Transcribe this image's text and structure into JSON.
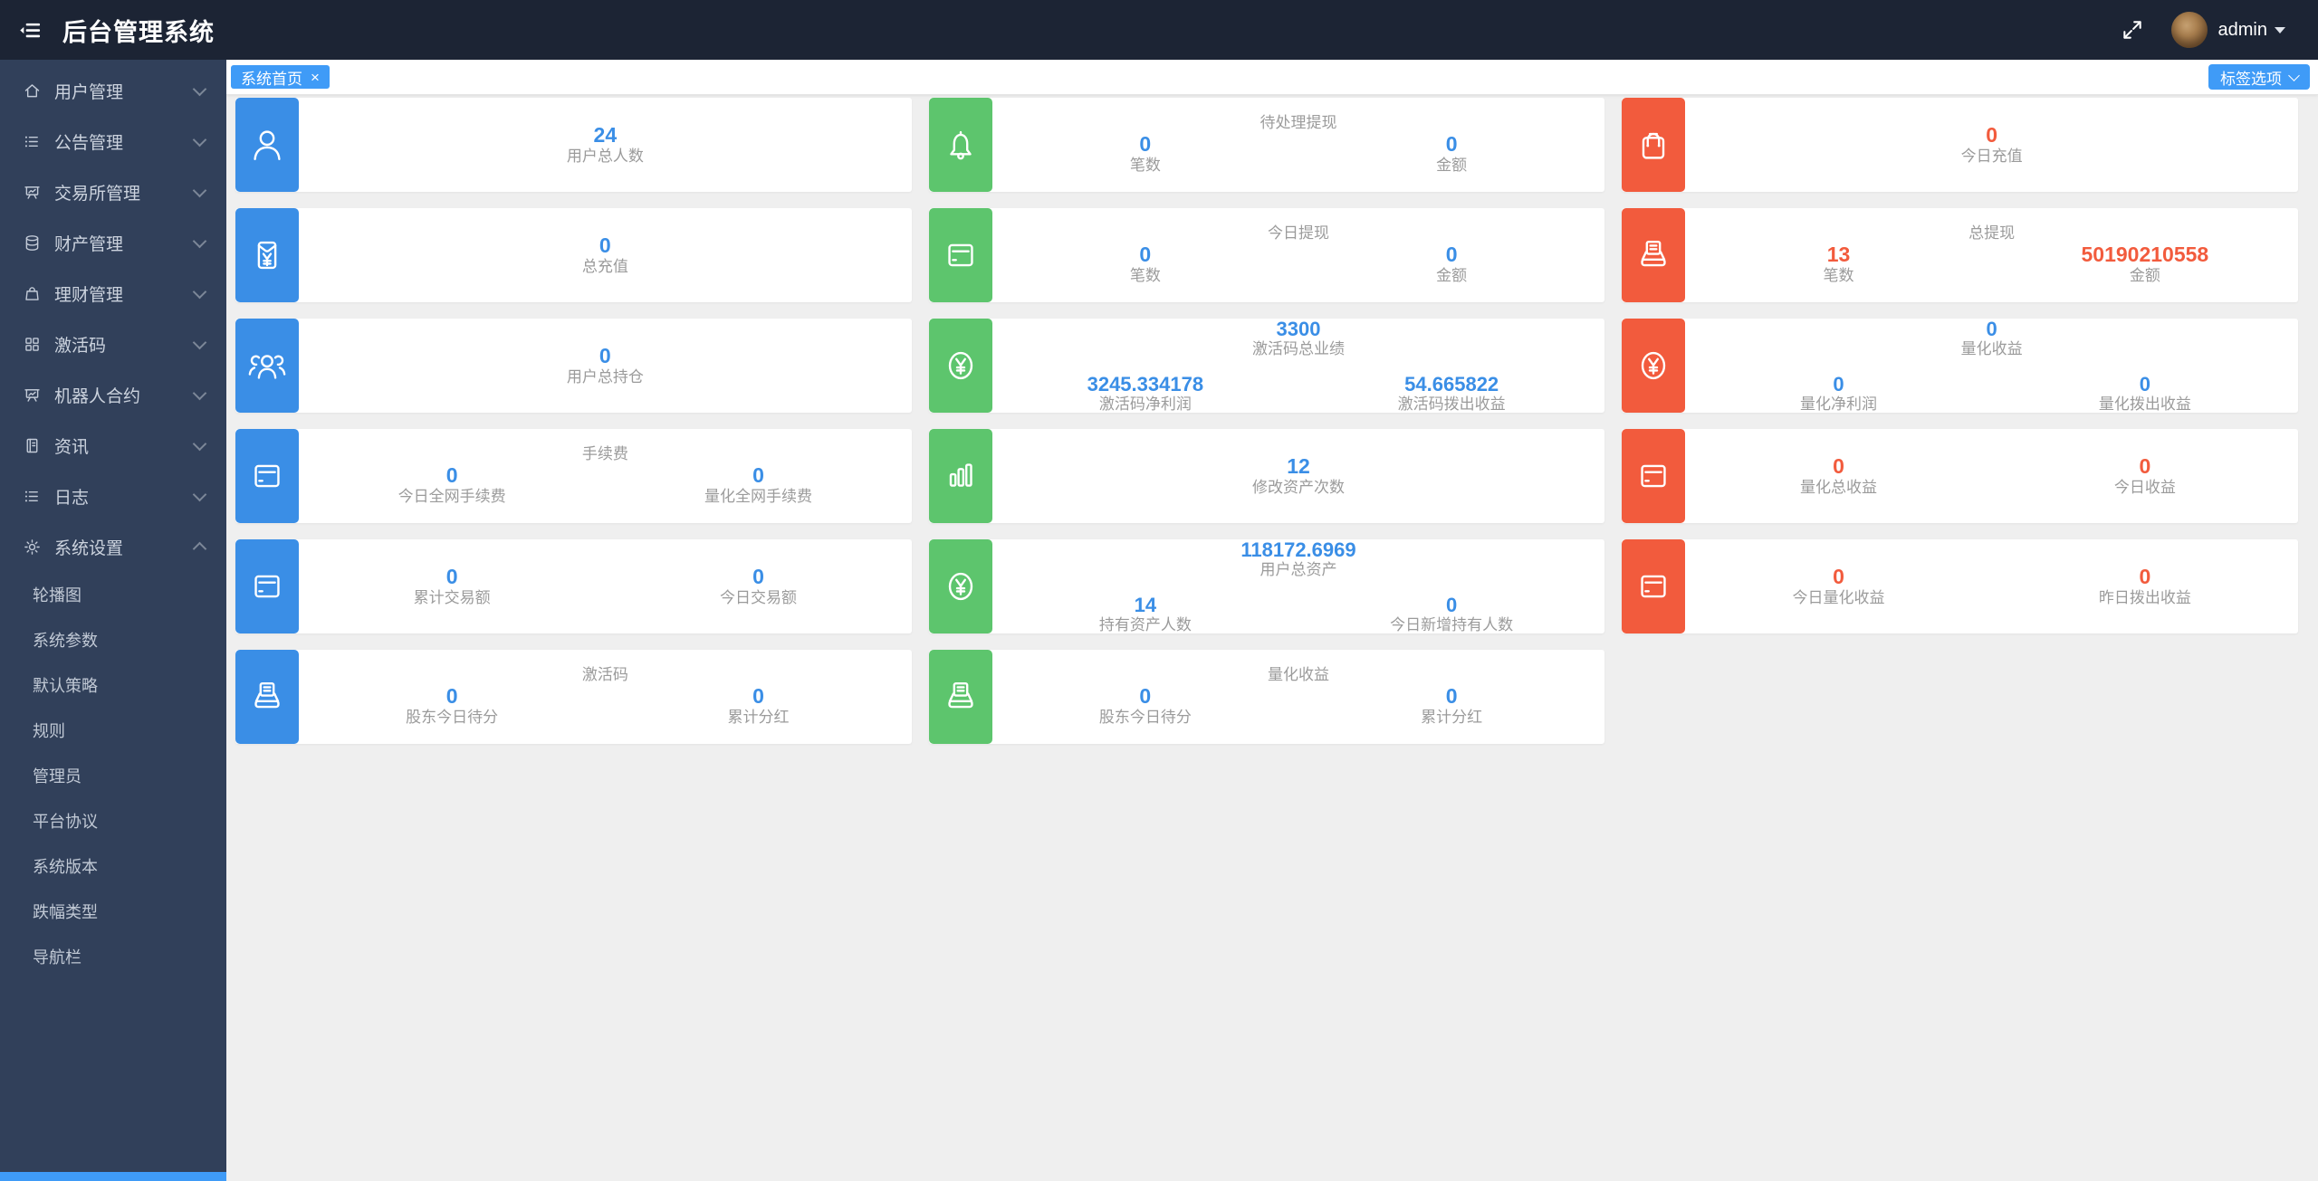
{
  "app": {
    "title": "后台管理系统"
  },
  "header": {
    "fold_icon": "fold-menu-icon",
    "fullscreen_icon": "expand-icon",
    "user": "admin",
    "avatar": "puppy-photo-avatar"
  },
  "sidebar": {
    "items": [
      {
        "label": "用户管理",
        "icon": "home-icon",
        "expanded": false
      },
      {
        "label": "公告管理",
        "icon": "list-icon",
        "expanded": false
      },
      {
        "label": "交易所管理",
        "icon": "easel-icon",
        "expanded": false
      },
      {
        "label": "财产管理",
        "icon": "database-icon",
        "expanded": false
      },
      {
        "label": "理财管理",
        "icon": "bag-icon",
        "expanded": false
      },
      {
        "label": "激活码",
        "icon": "grid-icon",
        "expanded": false
      },
      {
        "label": "机器人合约",
        "icon": "easel-icon",
        "expanded": false
      },
      {
        "label": "资讯",
        "icon": "notebook-icon",
        "expanded": false
      },
      {
        "label": "日志",
        "icon": "list-icon",
        "expanded": false
      },
      {
        "label": "系统设置",
        "icon": "gear-icon",
        "expanded": true,
        "children": [
          "轮播图",
          "系统参数",
          "默认策略",
          "规则",
          "管理员",
          "平台协议",
          "系统版本",
          "跌幅类型",
          "导航栏"
        ]
      }
    ]
  },
  "tabbar": {
    "active_tab": "系统首页",
    "close": "×",
    "tag_options_label": "标签选项"
  },
  "cards": [
    {
      "color": "blue",
      "icon": "user-icon",
      "value_color": "blue",
      "stats": [
        {
          "value": "24",
          "label": "用户总人数"
        }
      ]
    },
    {
      "color": "green",
      "icon": "bell-icon",
      "value_color": "blue",
      "title": "待处理提现",
      "stats": [
        {
          "value": "0",
          "label": "笔数"
        },
        {
          "value": "0",
          "label": "金额"
        }
      ]
    },
    {
      "color": "red",
      "icon": "shopping-bag-icon",
      "value_color": "red",
      "stats": [
        {
          "value": "0",
          "label": "今日充值"
        }
      ]
    },
    {
      "color": "blue",
      "icon": "red-envelope-icon",
      "value_color": "blue",
      "stats": [
        {
          "value": "0",
          "label": "总充值"
        }
      ]
    },
    {
      "color": "green",
      "icon": "credit-card-icon",
      "value_color": "blue",
      "title": "今日提现",
      "stats": [
        {
          "value": "0",
          "label": "笔数"
        },
        {
          "value": "0",
          "label": "金额"
        }
      ]
    },
    {
      "color": "red",
      "icon": "printer-icon",
      "value_color": "red",
      "title": "总提现",
      "stats": [
        {
          "value": "13",
          "label": "笔数"
        },
        {
          "value": "50190210558",
          "label": "金额"
        }
      ]
    },
    {
      "color": "blue",
      "icon": "users-icon",
      "value_color": "blue",
      "stats": [
        {
          "value": "0",
          "label": "用户总持仓"
        }
      ]
    },
    {
      "color": "green",
      "icon": "yen-circle-icon",
      "value_color": "blue",
      "top_stat": {
        "value": "3300",
        "label": "激活码总业绩"
      },
      "stats": [
        {
          "value": "3245.334178",
          "label": "激活码净利润"
        },
        {
          "value": "54.665822",
          "label": "激活码拨出收益"
        }
      ]
    },
    {
      "color": "red",
      "icon": "yen-circle-icon",
      "value_color": "blue",
      "top_stat": {
        "value": "0",
        "label": "量化收益"
      },
      "stats": [
        {
          "value": "0",
          "label": "量化净利润"
        },
        {
          "value": "0",
          "label": "量化拨出收益"
        }
      ]
    },
    {
      "color": "blue",
      "icon": "credit-card-icon",
      "value_color": "blue",
      "title": "手续费",
      "stats": [
        {
          "value": "0",
          "label": "今日全网手续费"
        },
        {
          "value": "0",
          "label": "量化全网手续费"
        }
      ]
    },
    {
      "color": "green",
      "icon": "bar-chart-icon",
      "value_color": "blue",
      "stats": [
        {
          "value": "12",
          "label": "修改资产次数"
        }
      ]
    },
    {
      "color": "red",
      "icon": "credit-card-icon",
      "value_color": "red",
      "stats": [
        {
          "value": "0",
          "label": "量化总收益"
        },
        {
          "value": "0",
          "label": "今日收益"
        }
      ]
    },
    {
      "color": "blue",
      "icon": "credit-card-icon",
      "value_color": "blue",
      "stats": [
        {
          "value": "0",
          "label": "累计交易额"
        },
        {
          "value": "0",
          "label": "今日交易额"
        }
      ]
    },
    {
      "color": "green",
      "icon": "yen-circle-icon",
      "value_color": "blue",
      "top_stat": {
        "value": "118172.6969",
        "label": "用户总资产"
      },
      "stats": [
        {
          "value": "14",
          "label": "持有资产人数"
        },
        {
          "value": "0",
          "label": "今日新增持有人数"
        }
      ]
    },
    {
      "color": "red",
      "icon": "credit-card-icon",
      "value_color": "red",
      "stats": [
        {
          "value": "0",
          "label": "今日量化收益"
        },
        {
          "value": "0",
          "label": "昨日拨出收益"
        }
      ]
    },
    {
      "color": "blue",
      "icon": "printer-icon",
      "value_color": "blue",
      "title": "激活码",
      "stats": [
        {
          "value": "0",
          "label": "股东今日待分"
        },
        {
          "value": "0",
          "label": "累计分红"
        }
      ]
    },
    {
      "color": "green",
      "icon": "printer-icon",
      "value_color": "blue",
      "title": "量化收益",
      "stats": [
        {
          "value": "0",
          "label": "股东今日待分"
        },
        {
          "value": "0",
          "label": "累计分红"
        }
      ]
    }
  ],
  "colors": {
    "header_bg": "#1c2434",
    "sidebar_bg": "#31405a",
    "accent_blue": "#3f9bf7",
    "icon_blue": "#3a8ee6",
    "icon_green": "#5dc56d",
    "icon_red": "#f25b3d",
    "value_blue": "#3a8ee6",
    "value_red": "#f25b3d",
    "label_gray": "#9b9b9b"
  }
}
